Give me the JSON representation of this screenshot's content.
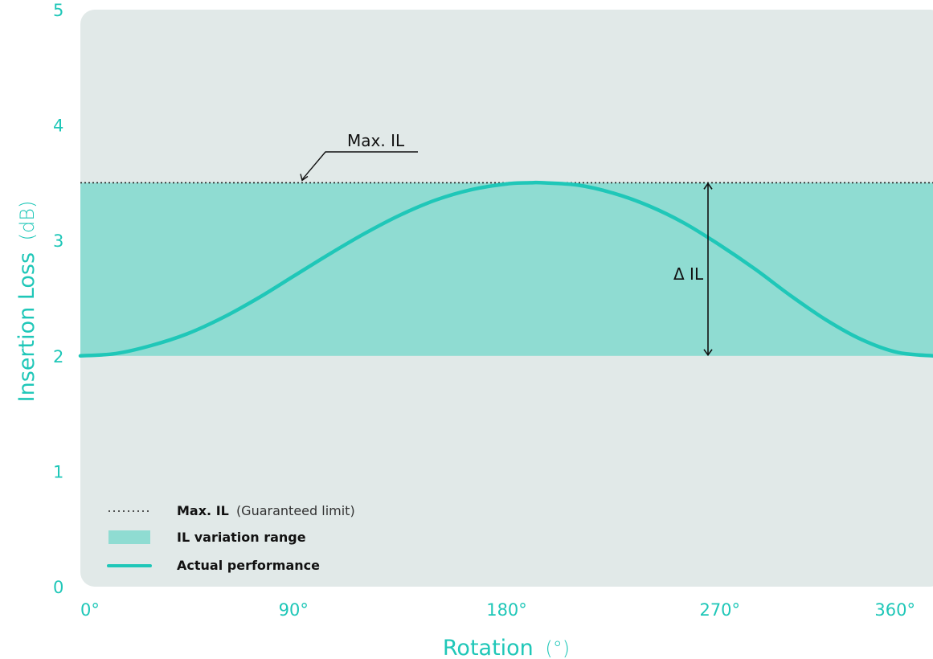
{
  "colors": {
    "plot_background": "#e1e9e8",
    "band_fill": "#8fdcd2",
    "curve": "#1fc7b8",
    "axis_text": "#1fc7b8",
    "annotation": "#111111"
  },
  "chart_data": {
    "type": "line",
    "ylabel": "Insertion Loss",
    "ylabel_unit": "(dB)",
    "xlabel": "Rotation",
    "xlabel_unit": "(°)",
    "xlim": [
      0,
      360
    ],
    "ylim": [
      0,
      5
    ],
    "x_ticks": [
      0,
      90,
      180,
      270,
      360
    ],
    "x_tick_labels": [
      "0°",
      "90°",
      "180°",
      "270°",
      "360°"
    ],
    "y_ticks": [
      0,
      1,
      2,
      3,
      4,
      5
    ],
    "y_tick_labels": [
      "0",
      "1",
      "2",
      "3",
      "4",
      "5"
    ],
    "grid": false,
    "max_il": 3.5,
    "band": [
      2.0,
      3.5
    ],
    "series": [
      {
        "name": "Actual performance",
        "x": [
          0,
          15,
          30,
          45,
          60,
          75,
          90,
          105,
          120,
          135,
          150,
          165,
          180,
          190,
          195,
          210,
          225,
          240,
          255,
          270,
          285,
          300,
          315,
          330,
          345,
          360
        ],
        "y": [
          2.0,
          2.02,
          2.09,
          2.19,
          2.33,
          2.5,
          2.69,
          2.88,
          3.06,
          3.22,
          3.35,
          3.44,
          3.49,
          3.5,
          3.5,
          3.48,
          3.41,
          3.3,
          3.15,
          2.96,
          2.75,
          2.52,
          2.31,
          2.14,
          2.03,
          2.0
        ]
      }
    ],
    "annotations": {
      "max_il_label": "Max. IL",
      "delta_il_label": "Δ IL",
      "delta_il_x": 265
    },
    "legend": {
      "position": "bottom-left",
      "items": [
        {
          "bold": "Max. IL",
          "light": "(Guaranteed limit)",
          "style": "dotted"
        },
        {
          "bold": "IL variation range",
          "light": "",
          "style": "band"
        },
        {
          "bold": "Actual performance",
          "light": "",
          "style": "line"
        }
      ]
    }
  }
}
